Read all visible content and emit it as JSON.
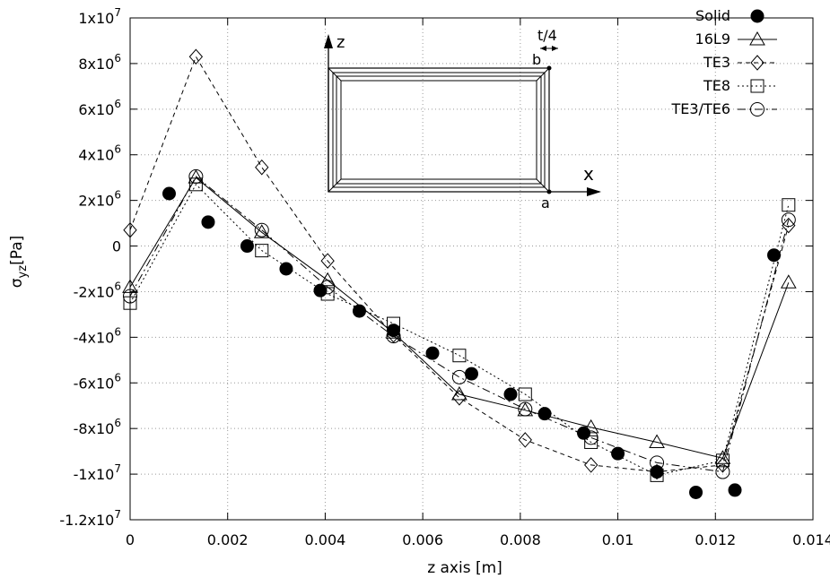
{
  "chart_data": {
    "type": "line",
    "xlabel": "z axis [m]",
    "ylabel": "σ_yz [Pa]",
    "xlim": [
      0,
      0.014
    ],
    "ylim": [
      -12000000,
      10000000
    ],
    "grid": true,
    "legend_position": "top-right",
    "x_ticks": [
      {
        "value": 0,
        "label": "0"
      },
      {
        "value": 0.002,
        "label": "0.002"
      },
      {
        "value": 0.004,
        "label": "0.004"
      },
      {
        "value": 0.006,
        "label": "0.006"
      },
      {
        "value": 0.008,
        "label": "0.008"
      },
      {
        "value": 0.01,
        "label": "0.01"
      },
      {
        "value": 0.012,
        "label": "0.012"
      },
      {
        "value": 0.014,
        "label": "0.014"
      }
    ],
    "y_ticks": [
      {
        "value": 10000000,
        "mant": "1x10",
        "exp": "7"
      },
      {
        "value": 8000000,
        "mant": "8x10",
        "exp": "6"
      },
      {
        "value": 6000000,
        "mant": "6x10",
        "exp": "6"
      },
      {
        "value": 4000000,
        "mant": "4x10",
        "exp": "6"
      },
      {
        "value": 2000000,
        "mant": "2x10",
        "exp": "6"
      },
      {
        "value": 0,
        "mant": "0",
        "exp": ""
      },
      {
        "value": -2000000,
        "mant": "-2x10",
        "exp": "6"
      },
      {
        "value": -4000000,
        "mant": "-4x10",
        "exp": "6"
      },
      {
        "value": -6000000,
        "mant": "-6x10",
        "exp": "6"
      },
      {
        "value": -8000000,
        "mant": "-8x10",
        "exp": "6"
      },
      {
        "value": -10000000,
        "mant": "-1x10",
        "exp": "7"
      },
      {
        "value": -12000000,
        "mant": "-1.2x10",
        "exp": "7"
      }
    ],
    "series": [
      {
        "name": "Solid",
        "marker": "filled-circle",
        "line": "none",
        "x": [
          0.0008,
          0.0016,
          0.0024,
          0.0032,
          0.0039,
          0.0047,
          0.0054,
          0.0062,
          0.007,
          0.0078,
          0.0085,
          0.0093,
          0.01,
          0.0108,
          0.0116,
          0.0124,
          0.0132
        ],
        "y": [
          2300000,
          1050000,
          0,
          -1000000,
          -1950000,
          -2850000,
          -3700000,
          -4700000,
          -5600000,
          -6500000,
          -7350000,
          -8200000,
          -9100000,
          -9900000,
          -10800000,
          -10700000,
          -400000
        ]
      },
      {
        "name": "16L9",
        "marker": "open-triangle",
        "line": "solid",
        "x": [
          0,
          0.00135,
          0.0027,
          0.00405,
          0.0054,
          0.00675,
          0.0081,
          0.00945,
          0.0108,
          0.01215,
          0.0135
        ],
        "y": [
          -1800000,
          3000000,
          600000,
          -1500000,
          -3800000,
          -6500000,
          -7200000,
          -7950000,
          -8600000,
          -9300000,
          -1600000
        ]
      },
      {
        "name": "TE3",
        "marker": "open-diamond",
        "line": "dashed",
        "x": [
          0,
          0.00135,
          0.0027,
          0.00405,
          0.0054,
          0.00675,
          0.0081,
          0.00945,
          0.0108,
          0.01215,
          0.0135
        ],
        "y": [
          700000,
          8300000,
          3450000,
          -650000,
          -3900000,
          -6650000,
          -8500000,
          -9600000,
          -9900000,
          -9600000,
          900000
        ]
      },
      {
        "name": "TE8",
        "marker": "open-square",
        "line": "dotted",
        "x": [
          0,
          0.00135,
          0.0027,
          0.00405,
          0.0054,
          0.00675,
          0.0081,
          0.00945,
          0.0108,
          0.01215,
          0.0135
        ],
        "y": [
          -2500000,
          2700000,
          -200000,
          -2100000,
          -3400000,
          -4800000,
          -6500000,
          -8600000,
          -10050000,
          -9400000,
          1800000
        ]
      },
      {
        "name": "TE3/TE6",
        "marker": "open-circle",
        "line": "dash-dot",
        "x": [
          0,
          0.00135,
          0.0027,
          0.00405,
          0.0054,
          0.00675,
          0.0081,
          0.00945,
          0.0108,
          0.01215,
          0.0135
        ],
        "y": [
          -2200000,
          3050000,
          700000,
          -1800000,
          -3950000,
          -5750000,
          -7150000,
          -8400000,
          -9500000,
          -9900000,
          1150000
        ]
      }
    ],
    "inset": {
      "axis_z": "z",
      "axis_x": "x",
      "thickness_label": "t/4",
      "point_b": "b",
      "point_a": "a"
    }
  }
}
